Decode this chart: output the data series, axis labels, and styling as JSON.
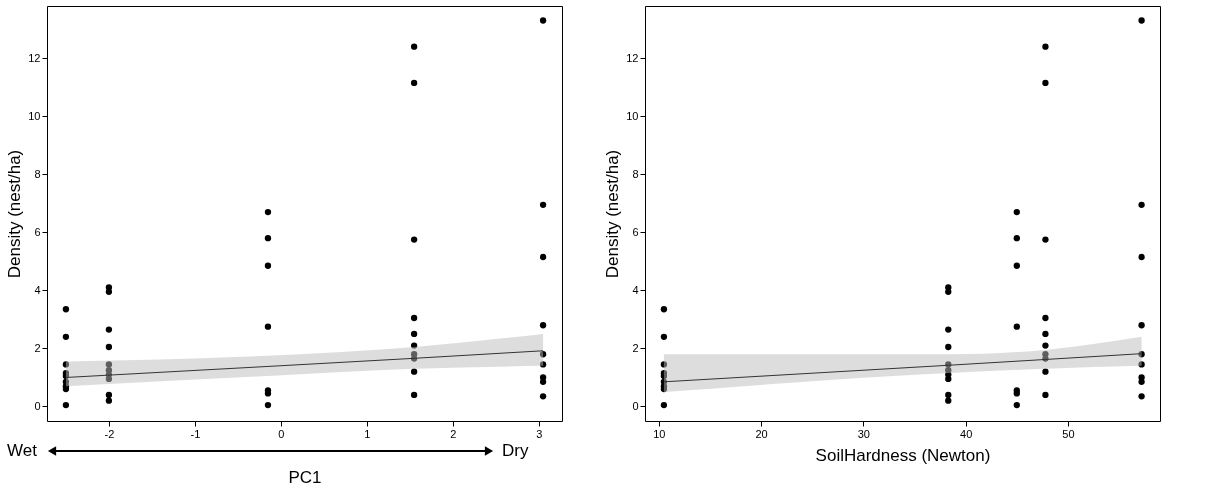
{
  "chart_data": [
    {
      "type": "scatter",
      "xlabel": "PC1",
      "ylabel": "Density (nest/ha)",
      "annotations": [
        "Wet",
        "Dry"
      ],
      "xlim": [
        -2.72,
        3.27
      ],
      "ylim": [
        -0.5,
        13.8
      ],
      "xticks": [
        -2,
        -1,
        0,
        1,
        2,
        3
      ],
      "yticks": [
        0,
        2,
        4,
        6,
        8,
        10,
        12
      ],
      "grid": false,
      "series": [
        {
          "color": "#000000",
          "marker": "circle",
          "x": [
            -2.5,
            -2.5,
            -2.5,
            -2.5,
            -2.5,
            -2.5,
            -2.5,
            -2.5,
            -2.5,
            -2,
            -2,
            -2,
            -2,
            -2,
            -2,
            -2,
            -2,
            -2,
            -2,
            -0.15,
            -0.15,
            -0.15,
            -0.15,
            -0.15,
            -0.15,
            -0.15,
            1.55,
            1.55,
            1.55,
            1.55,
            1.55,
            1.55,
            1.55,
            1.55,
            1.55,
            1.55,
            3.05,
            3.05,
            3.05,
            3.05,
            3.05,
            3.05,
            3.05,
            3.05,
            3.05
          ],
          "values": [
            3.35,
            2.4,
            1.45,
            1.15,
            1.05,
            0.85,
            0.7,
            0.6,
            0.05,
            4.1,
            3.95,
            2.65,
            2.05,
            1.45,
            1.25,
            1.1,
            0.95,
            0.4,
            0.2,
            6.7,
            5.8,
            4.85,
            2.75,
            0.55,
            0.45,
            0.05,
            12.4,
            11.15,
            5.75,
            3.05,
            2.5,
            2.1,
            1.8,
            1.65,
            1.2,
            0.4,
            13.3,
            6.95,
            5.15,
            2.8,
            1.8,
            1.45,
            1.0,
            0.85,
            0.35
          ]
        },
        {
          "type": "line",
          "color": "#333333",
          "x": [
            -2.5,
            -0.15,
            1.55,
            3.05
          ],
          "values": [
            1.0,
            1.38,
            1.66,
            1.92
          ],
          "lower": [
            0.7,
            1.05,
            1.3,
            1.4
          ],
          "upper": [
            1.55,
            1.75,
            2.05,
            2.5
          ]
        }
      ]
    },
    {
      "type": "scatter",
      "xlabel": "SoilHardness (Newton)",
      "ylabel": "Density (nest/ha)",
      "xlim": [
        8.65,
        59.0
      ],
      "ylim": [
        -0.5,
        13.8
      ],
      "xticks": [
        10,
        20,
        30,
        40,
        50
      ],
      "yticks": [
        0,
        2,
        4,
        6,
        8,
        10,
        12
      ],
      "grid": false,
      "series": [
        {
          "color": "#000000",
          "marker": "circle",
          "x": [
            10.5,
            10.5,
            10.5,
            10.5,
            10.5,
            10.5,
            10.5,
            10.5,
            10.5,
            38.3,
            38.3,
            38.3,
            38.3,
            38.3,
            38.3,
            38.3,
            38.3,
            38.3,
            38.3,
            45.0,
            45.0,
            45.0,
            45.0,
            45.0,
            45.0,
            45.0,
            47.8,
            47.8,
            47.8,
            47.8,
            47.8,
            47.8,
            47.8,
            47.8,
            47.8,
            47.8,
            57.2,
            57.2,
            57.2,
            57.2,
            57.2,
            57.2,
            57.2,
            57.2,
            57.2
          ],
          "values": [
            3.35,
            2.4,
            1.45,
            1.15,
            1.05,
            0.85,
            0.7,
            0.6,
            0.05,
            4.1,
            3.95,
            2.65,
            2.05,
            1.45,
            1.25,
            1.1,
            0.95,
            0.4,
            0.2,
            6.7,
            5.8,
            4.85,
            2.75,
            0.55,
            0.45,
            0.05,
            12.4,
            11.15,
            5.75,
            3.05,
            2.5,
            2.1,
            1.8,
            1.65,
            1.2,
            0.4,
            13.3,
            6.95,
            5.15,
            2.8,
            1.8,
            1.45,
            1.0,
            0.85,
            0.35
          ]
        },
        {
          "type": "line",
          "color": "#333333",
          "x": [
            10.5,
            38.3,
            47.8,
            57.2
          ],
          "values": [
            0.85,
            1.42,
            1.62,
            1.82
          ],
          "lower": [
            0.5,
            1.15,
            1.3,
            1.4
          ],
          "upper": [
            1.8,
            1.8,
            1.95,
            2.4
          ]
        }
      ]
    }
  ]
}
